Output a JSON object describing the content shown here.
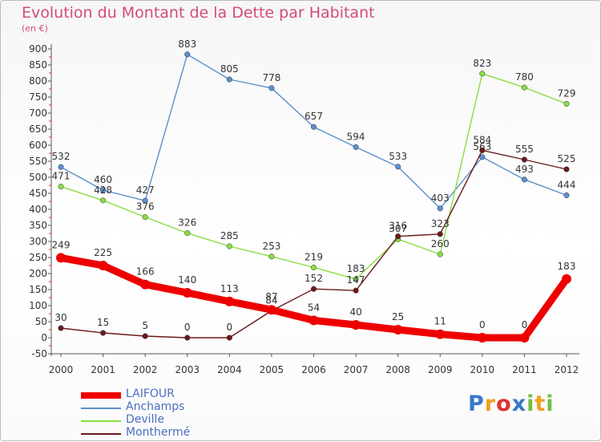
{
  "chart_data": {
    "type": "line",
    "title": "Evolution du Montant de la Dette par Habitant",
    "unit": "(en €)",
    "x": [
      "2000",
      "2001",
      "2002",
      "2003",
      "2004",
      "2005",
      "2006",
      "2007",
      "2008",
      "2009",
      "2010",
      "2011",
      "2012"
    ],
    "y_ticks": [
      "900",
      "850",
      "800",
      "750",
      "700",
      "650",
      "600",
      "550",
      "500",
      "450",
      "400",
      "350",
      "300",
      "250",
      "200",
      "150",
      "100",
      "50",
      "0",
      "-50"
    ],
    "ylim": [
      -50,
      900
    ],
    "grid": false,
    "legend_position": "bottom-left",
    "series": [
      {
        "name": "LAIFOUR",
        "color": "#ee0000",
        "emphasis": true,
        "values": [
          249,
          225,
          166,
          140,
          113,
          87,
          54,
          40,
          25,
          11,
          0,
          0,
          183
        ],
        "labels": [
          "249",
          "225",
          "166",
          "140",
          "113",
          "87",
          "54",
          "40",
          "25",
          "11",
          "0",
          "0",
          "183"
        ]
      },
      {
        "name": "Anchamps",
        "color": "#5a8fcf",
        "values": [
          532,
          460,
          427,
          883,
          805,
          778,
          657,
          594,
          533,
          403,
          563,
          493,
          444
        ],
        "labels": [
          "532",
          "460",
          "427",
          "883",
          "805",
          "778",
          "657",
          "594",
          "533",
          "403",
          "563",
          "493",
          "444"
        ]
      },
      {
        "name": "Deville",
        "color": "#88dd44",
        "values": [
          471,
          428,
          376,
          326,
          285,
          253,
          219,
          183,
          307,
          260,
          823,
          780,
          729
        ],
        "labels": [
          "471",
          "428",
          "376",
          "326",
          "285",
          "253",
          "219",
          "183",
          "307",
          "260",
          "823",
          "780",
          "729"
        ]
      },
      {
        "name": "Monthermé",
        "color": "#6a1a1a",
        "values": [
          30,
          15,
          5,
          0,
          0,
          84,
          152,
          147,
          316,
          323,
          584,
          555,
          525
        ],
        "labels": [
          "30",
          "15",
          "5",
          "0",
          "0",
          "84",
          "152",
          "147",
          "316",
          "323",
          "584",
          "555",
          "525"
        ]
      }
    ]
  },
  "brand": {
    "letters": [
      {
        "ch": "P",
        "color": "#3a78c8"
      },
      {
        "ch": "r",
        "color": "#f0a020"
      },
      {
        "ch": "o",
        "color": "#e03030"
      },
      {
        "ch": "x",
        "color": "#3a78c8"
      },
      {
        "ch": "i",
        "color": "#70c040"
      },
      {
        "ch": "t",
        "color": "#f0a020"
      },
      {
        "ch": "i",
        "color": "#70c040"
      }
    ]
  }
}
